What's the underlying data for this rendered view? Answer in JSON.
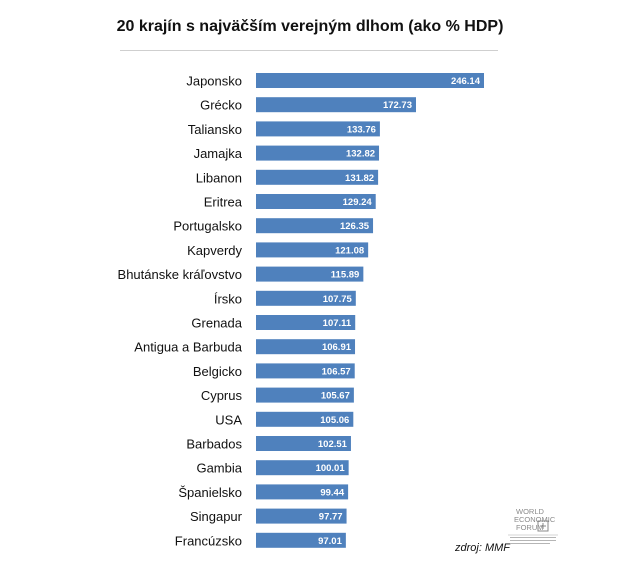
{
  "chart_data": {
    "type": "bar",
    "orientation": "horizontal",
    "title": "20 krajín s najväčším verejným dlhom (ako % HDP)",
    "categories": [
      "Japonsko",
      "Grécko",
      "Taliansko",
      "Jamajka",
      "Libanon",
      "Eritrea",
      "Portugalsko",
      "Kapverdy",
      "Bhutánske kráľovstvo",
      "Írsko",
      "Grenada",
      "Antigua a Barbuda",
      "Belgicko",
      "Cyprus",
      "USA",
      "Barbados",
      "Gambia",
      "Španielsko",
      "Singapur",
      "Francúzsko"
    ],
    "values": [
      246.14,
      172.73,
      133.76,
      132.82,
      131.82,
      129.24,
      126.35,
      121.08,
      115.89,
      107.75,
      107.11,
      106.91,
      106.57,
      105.67,
      105.06,
      102.51,
      100.01,
      99.44,
      97.77,
      97.01
    ],
    "value_labels": [
      "246.14",
      "172.73",
      "133.76",
      "132.82",
      "131.82",
      "129.24",
      "126.35",
      "121.08",
      "115.89",
      "107.75",
      "107.11",
      "106.91",
      "106.57",
      "105.67",
      "105.06",
      "102.51",
      "100.01",
      "99.44",
      "97.77",
      "97.01"
    ],
    "xlim": [
      0,
      250
    ],
    "bar_color": "#4f81bd",
    "label_color": "#ffffff",
    "grid": false
  },
  "source": "zdroj: MMF",
  "logo": {
    "icon": "world-economic-forum-logo",
    "lines": [
      "WORLD",
      "ECONOMIC",
      "FORUM"
    ]
  }
}
